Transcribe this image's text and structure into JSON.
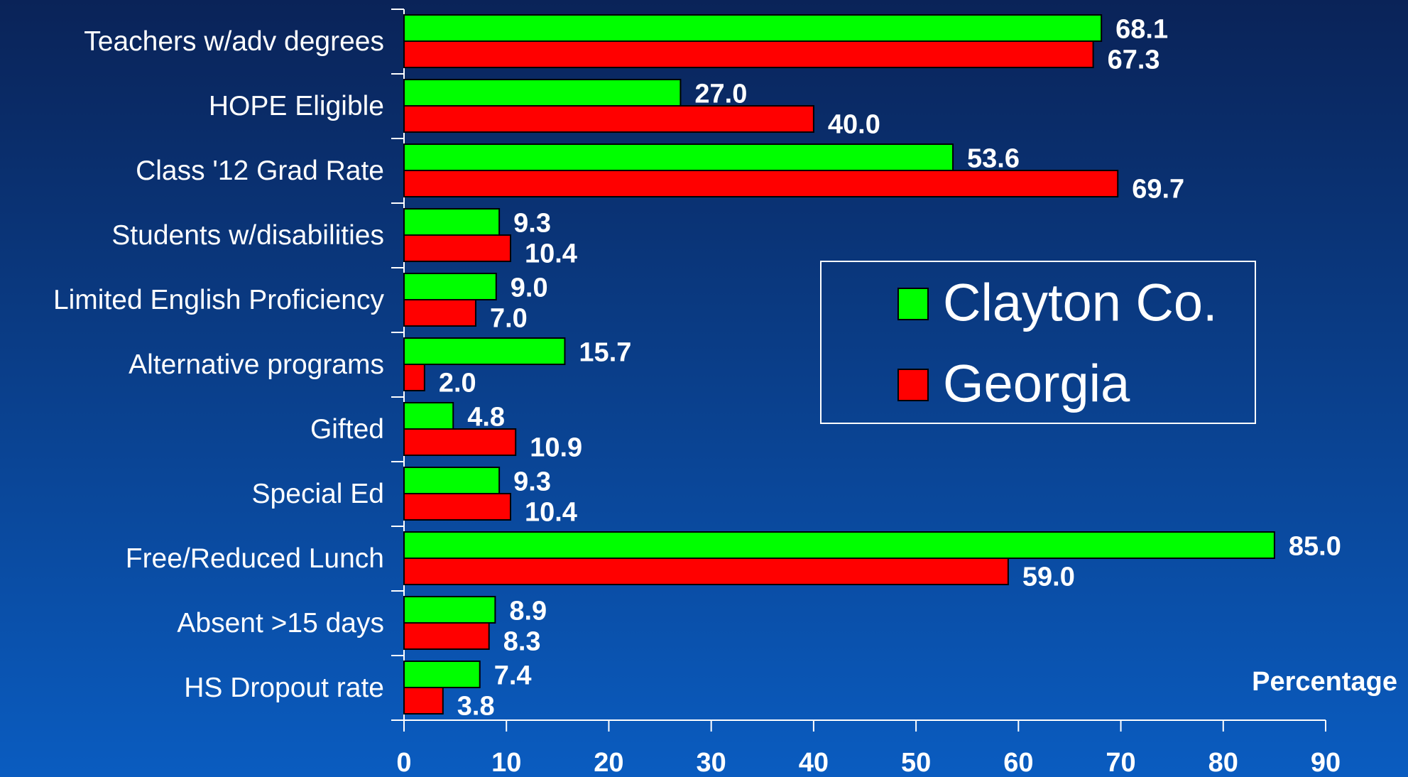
{
  "chart_data": {
    "type": "barh",
    "categories": [
      "Teachers w/adv degrees",
      "HOPE Eligible",
      "Class '12 Grad Rate",
      "Students w/disabilities",
      "Limited English Proficiency",
      "Alternative programs",
      "Gifted",
      "Special Ed",
      "Free/Reduced Lunch",
      "Absent >15 days",
      "HS Dropout rate"
    ],
    "series": [
      {
        "name": "Clayton Co.",
        "color": "#00ff00",
        "values": [
          68.1,
          27,
          53.6,
          9.3,
          9,
          15.7,
          4.8,
          9.3,
          85,
          8.9,
          7.4
        ],
        "value_labels": [
          "68.1",
          "27.0",
          "53.6",
          "9.3",
          "9.0",
          "15.7",
          "4.8",
          "9.3",
          "85.0",
          "8.9",
          "7.4"
        ]
      },
      {
        "name": "Georgia",
        "color": "#ff0000",
        "values": [
          67.3,
          40,
          69.7,
          10.4,
          7,
          2,
          10.9,
          10.4,
          59,
          8.3,
          3.8
        ],
        "value_labels": [
          "67.3",
          "40.0",
          "69.7",
          "10.4",
          "7.0",
          "2.0",
          "10.9",
          "10.4",
          "59.0",
          "8.3",
          "3.8"
        ]
      }
    ],
    "xlabel": "Percentage",
    "xlim": [
      0,
      90
    ],
    "xticks": [
      0,
      10,
      20,
      30,
      40,
      50,
      60,
      70,
      80,
      90
    ],
    "legend": "right"
  }
}
